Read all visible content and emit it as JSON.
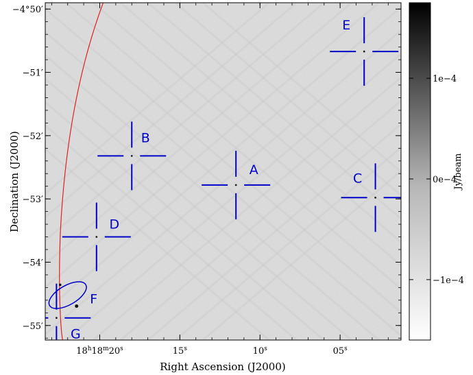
{
  "chart_data": {
    "type": "sky-image",
    "xlabel": "Right Ascension (J2000)",
    "ylabel": "Declination (J2000)",
    "x_ticks": [
      {
        "ra_sec": 20,
        "label": "18h18m20s",
        "parts": [
          "18",
          "h",
          "18",
          "m",
          "20",
          "s"
        ]
      },
      {
        "ra_sec": 15,
        "label": "15s",
        "parts": [
          "15",
          "s"
        ]
      },
      {
        "ra_sec": 10,
        "label": "10s",
        "parts": [
          "10",
          "s"
        ]
      },
      {
        "ra_sec": 5,
        "label": "05s",
        "parts": [
          "05",
          "s"
        ]
      }
    ],
    "y_ticks": [
      {
        "dec_arcmin": -50,
        "label": "−4°50′"
      },
      {
        "dec_arcmin": -51,
        "label": "−51′"
      },
      {
        "dec_arcmin": -52,
        "label": "−52′"
      },
      {
        "dec_arcmin": -53,
        "label": "−53′"
      },
      {
        "dec_arcmin": -54,
        "label": "−54′"
      },
      {
        "dec_arcmin": -55,
        "label": "−55′"
      }
    ],
    "x_range_ra_sec": [
      23.4,
      1.2
    ],
    "y_range_dec_arcmin": [
      -55.23,
      -49.9
    ],
    "sources": [
      {
        "name": "A",
        "ra_sec": 11.5,
        "dec_arcmin": -52.78
      },
      {
        "name": "B",
        "ra_sec": 18.0,
        "dec_arcmin": -52.32
      },
      {
        "name": "C",
        "ra_sec": 2.8,
        "dec_arcmin": -52.98
      },
      {
        "name": "D",
        "ra_sec": 20.2,
        "dec_arcmin": -53.6
      },
      {
        "name": "E",
        "ra_sec": 3.5,
        "dec_arcmin": -50.67
      },
      {
        "name": "G",
        "ra_sec": 22.7,
        "dec_arcmin": -54.88
      }
    ],
    "ellipse_F": {
      "name": "F",
      "ra_sec": 22.0,
      "dec_arcmin": -54.52,
      "ra_radius_sec": 0.6,
      "dec_radius_arcmin": 0.33,
      "angle_deg": 60
    },
    "colorbar": {
      "label": "Jy/beam",
      "range": [
        -0.00016,
        0.000175
      ],
      "ticks": [
        {
          "value": 0.0001,
          "label": "1e−4"
        },
        {
          "value": 0,
          "label": "0e−4"
        },
        {
          "value": -0.0001,
          "label": "−1e−4"
        }
      ]
    },
    "colors": {
      "marker": "#0000c8",
      "curve": "#e02020",
      "background": "#d6d6d6"
    }
  }
}
